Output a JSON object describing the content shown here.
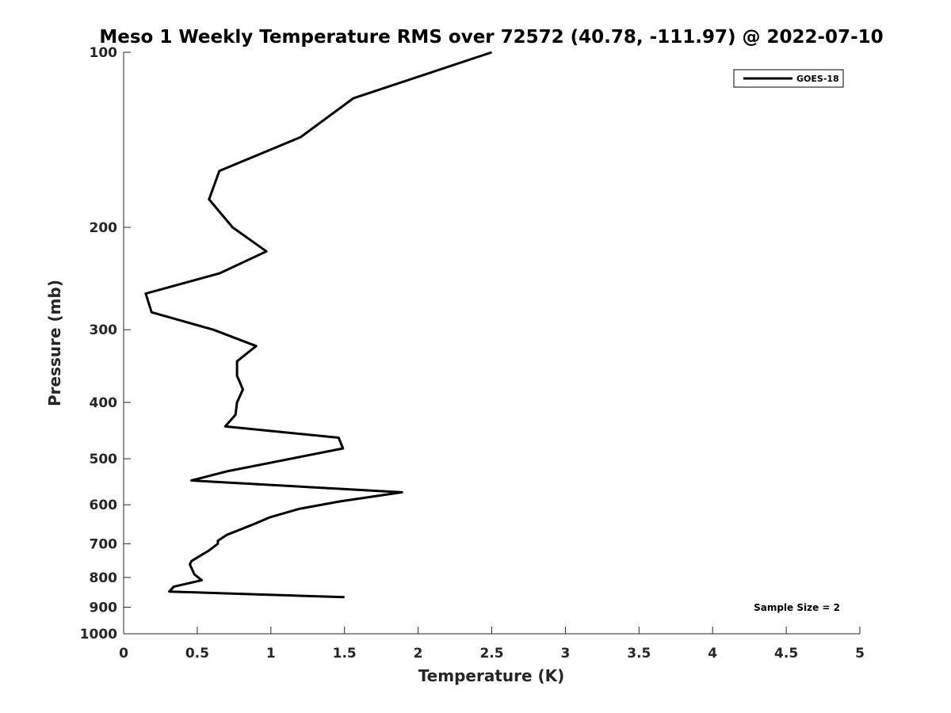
{
  "chart_data": {
    "type": "line",
    "title": "Meso 1 Weekly Temperature RMS over 72572 (40.78, -111.97) @ 2022-07-10",
    "xlabel": "Temperature (K)",
    "ylabel": "Pressure (mb)",
    "xlim": [
      0,
      5
    ],
    "ylim": [
      100,
      1000
    ],
    "y_scale": "log",
    "y_reversed": true,
    "grid": false,
    "legend_position": "top-right",
    "x_ticks": [
      0,
      0.5,
      1,
      1.5,
      2,
      2.5,
      3,
      3.5,
      4,
      4.5,
      5
    ],
    "x_tick_labels": [
      "0",
      "0.5",
      "1",
      "1.5",
      "2",
      "2.5",
      "3",
      "3.5",
      "4",
      "4.5",
      "5"
    ],
    "y_ticks": [
      100,
      200,
      300,
      400,
      500,
      600,
      700,
      800,
      900,
      1000
    ],
    "y_tick_labels": [
      "100",
      "200",
      "300",
      "400",
      "500",
      "600",
      "700",
      "800",
      "900",
      "1000"
    ],
    "series": [
      {
        "name": "GOES-18",
        "color": "#000000",
        "points": [
          [
            2.5,
            100
          ],
          [
            1.56,
            120
          ],
          [
            1.2,
            140
          ],
          [
            0.65,
            160
          ],
          [
            0.58,
            179
          ],
          [
            0.74,
            200
          ],
          [
            0.97,
            220
          ],
          [
            0.65,
            240
          ],
          [
            0.15,
            260
          ],
          [
            0.19,
            280
          ],
          [
            0.61,
            300
          ],
          [
            0.9,
            320
          ],
          [
            0.77,
            340
          ],
          [
            0.77,
            360
          ],
          [
            0.81,
            380
          ],
          [
            0.77,
            400
          ],
          [
            0.76,
            420
          ],
          [
            0.69,
            440
          ],
          [
            1.46,
            460
          ],
          [
            1.49,
            480
          ],
          [
            1.05,
            505
          ],
          [
            0.71,
            525
          ],
          [
            0.46,
            545
          ],
          [
            1.89,
            571
          ],
          [
            1.47,
            592
          ],
          [
            1.19,
            610
          ],
          [
            0.99,
            631
          ],
          [
            0.87,
            650
          ],
          [
            0.7,
            676
          ],
          [
            0.64,
            692
          ],
          [
            0.64,
            700
          ],
          [
            0.58,
            719
          ],
          [
            0.46,
            750
          ],
          [
            0.45,
            760
          ],
          [
            0.48,
            790
          ],
          [
            0.53,
            809
          ],
          [
            0.34,
            830
          ],
          [
            0.31,
            846
          ],
          [
            1.5,
            865
          ]
        ]
      }
    ],
    "annotation": "Sample Size = 2"
  }
}
